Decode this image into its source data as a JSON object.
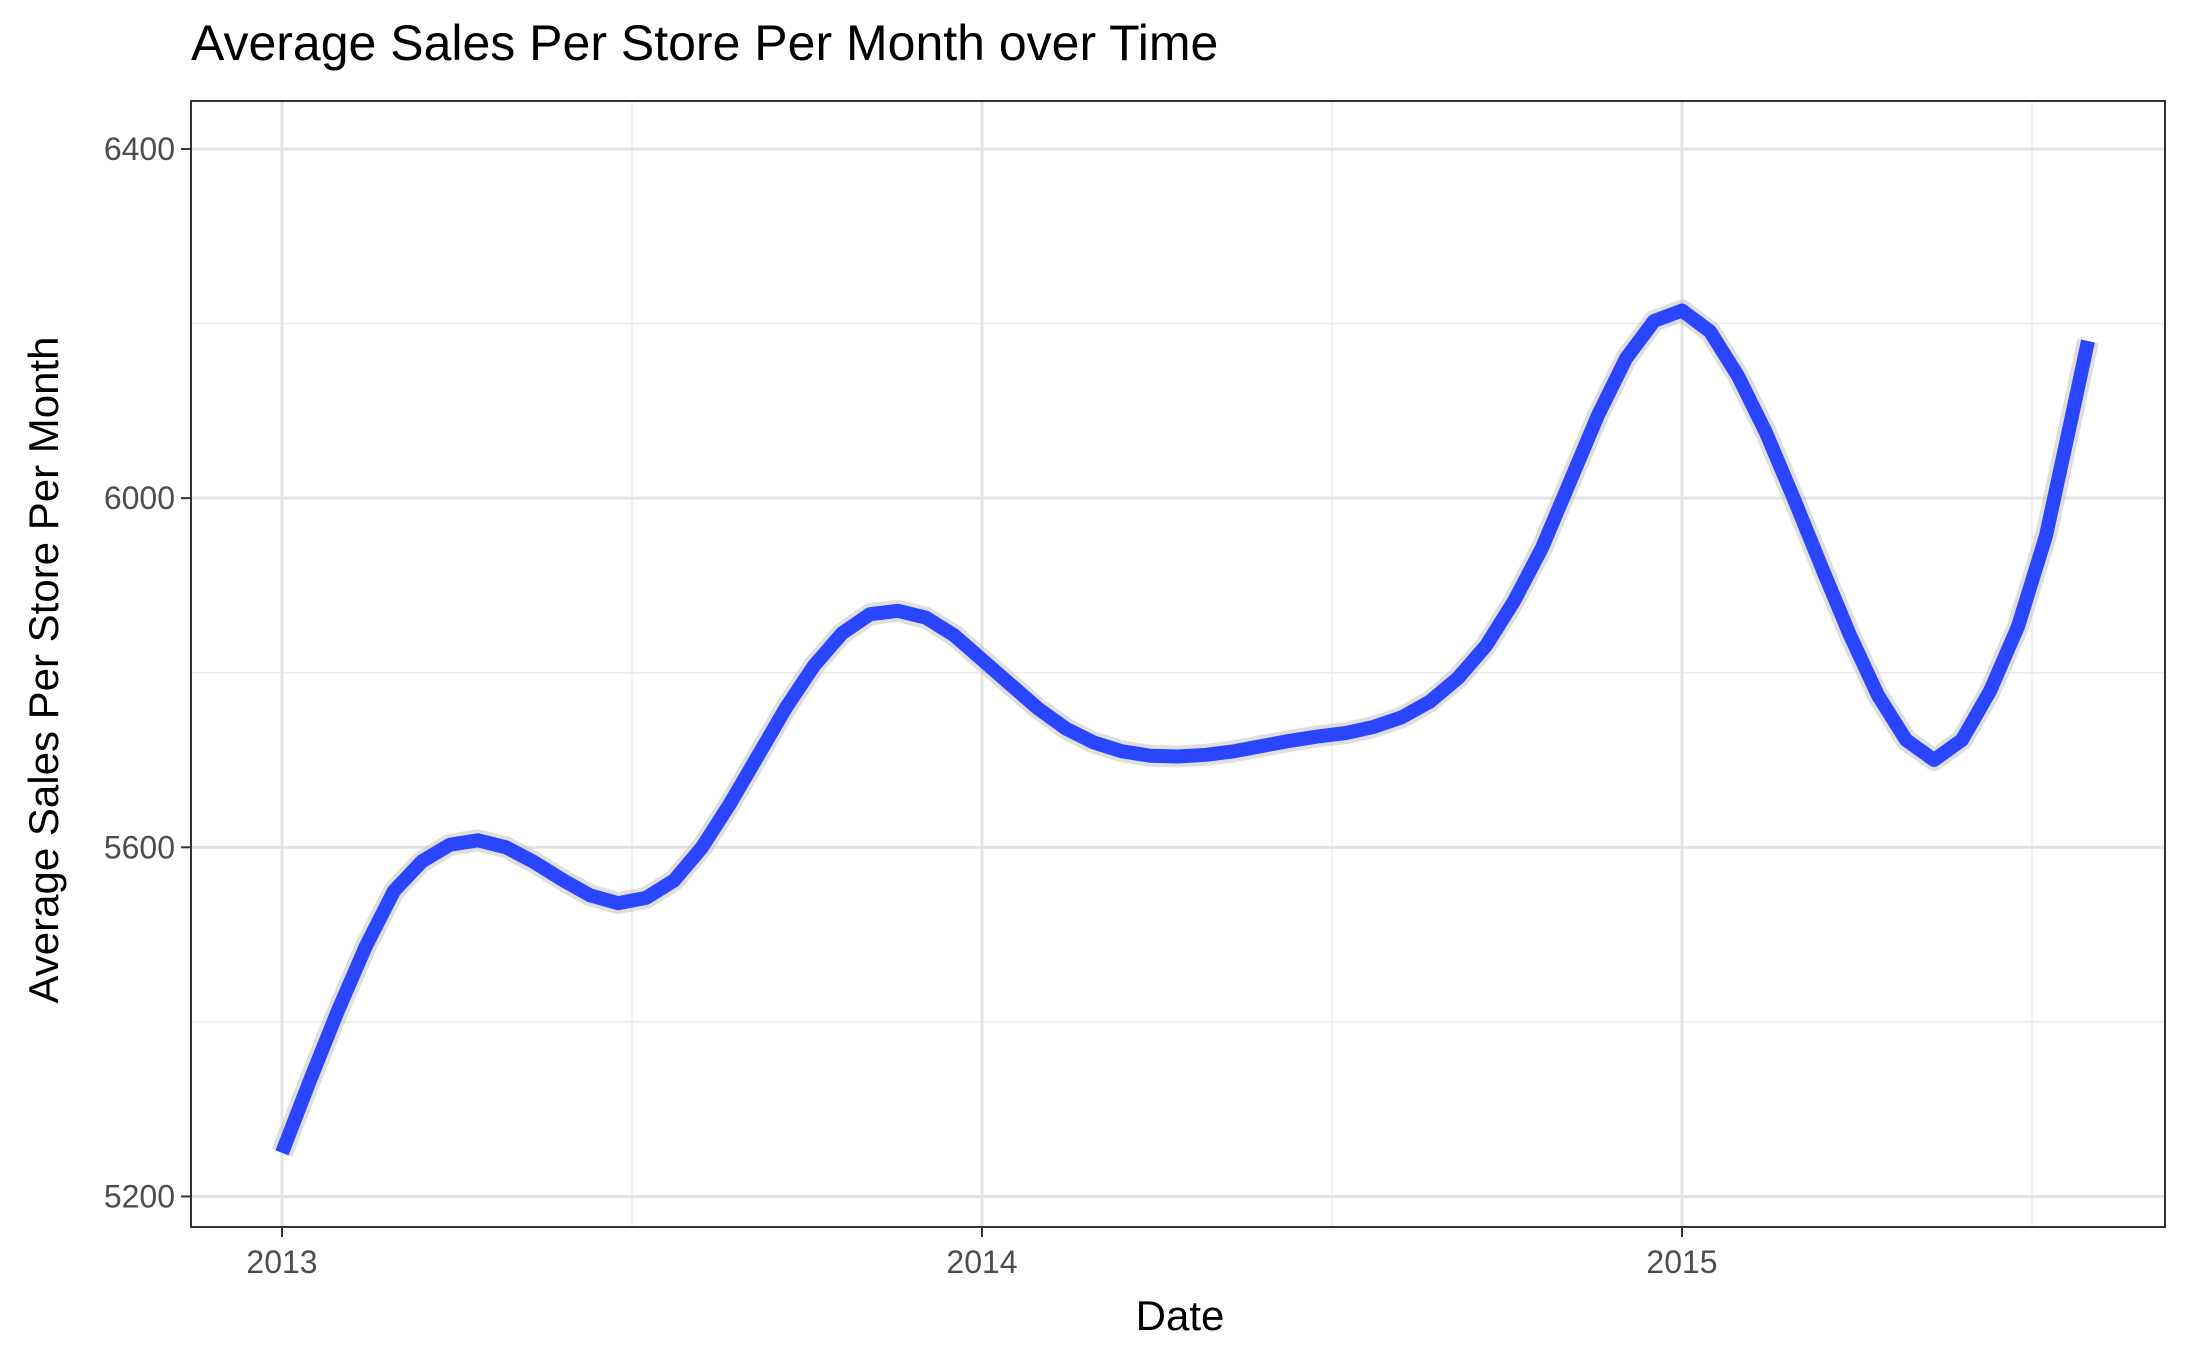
{
  "chart_data": {
    "type": "line",
    "title": "Average Sales Per Store Per Month over Time",
    "xlabel": "Date",
    "ylabel": "Average Sales Per Store Per Month",
    "xlim": [
      2012.87,
      2015.69
    ],
    "ylim": [
      5165,
      6455
    ],
    "x_ticks": [
      {
        "value": 2013,
        "label": "2013"
      },
      {
        "value": 2014,
        "label": "2014"
      },
      {
        "value": 2015,
        "label": "2015"
      }
    ],
    "x_minor_ticks": [
      2013.5,
      2014.5,
      2015.5
    ],
    "y_ticks": [
      {
        "value": 5200,
        "label": "5200"
      },
      {
        "value": 5600,
        "label": "5600"
      },
      {
        "value": 6000,
        "label": "6000"
      },
      {
        "value": 6400,
        "label": "6400"
      }
    ],
    "y_minor_ticks": [
      5400,
      5800,
      6200
    ],
    "grid": true,
    "line_color": "#2a45ff",
    "band_color": "#b8b8b8",
    "series": [
      {
        "name": "",
        "x": [
          2013.0,
          2013.04,
          2013.08,
          2013.12,
          2013.16,
          2013.2,
          2013.24,
          2013.28,
          2013.32,
          2013.36,
          2013.4,
          2013.44,
          2013.48,
          2013.52,
          2013.56,
          2013.6,
          2013.64,
          2013.68,
          2013.72,
          2013.76,
          2013.8,
          2013.84,
          2013.88,
          2013.92,
          2013.96,
          2014.0,
          2014.04,
          2014.08,
          2014.12,
          2014.16,
          2014.2,
          2014.24,
          2014.28,
          2014.32,
          2014.36,
          2014.4,
          2014.44,
          2014.48,
          2014.52,
          2014.56,
          2014.6,
          2014.64,
          2014.68,
          2014.72,
          2014.76,
          2014.8,
          2014.84,
          2014.88,
          2014.92,
          2014.96,
          2015.0,
          2015.04,
          2015.08,
          2015.12,
          2015.16,
          2015.2,
          2015.24,
          2015.28,
          2015.32,
          2015.36,
          2015.4,
          2015.44,
          2015.48,
          2015.52,
          2015.56,
          2015.58
        ],
        "y": [
          5250,
          5333,
          5413,
          5487,
          5550,
          5584,
          5603,
          5608,
          5600,
          5583,
          5563,
          5545,
          5536,
          5542,
          5562,
          5600,
          5650,
          5705,
          5760,
          5808,
          5845,
          5867,
          5871,
          5863,
          5843,
          5815,
          5787,
          5759,
          5736,
          5720,
          5710,
          5705,
          5704,
          5706,
          5710,
          5716,
          5722,
          5727,
          5731,
          5738,
          5749,
          5767,
          5794,
          5831,
          5882,
          5943,
          6019,
          6095,
          6160,
          6203,
          6215,
          6191,
          6140,
          6075,
          5999,
          5920,
          5843,
          5774,
          5723,
          5700,
          5723,
          5779,
          5853,
          5957,
          6105,
          6180
        ]
      }
    ]
  }
}
